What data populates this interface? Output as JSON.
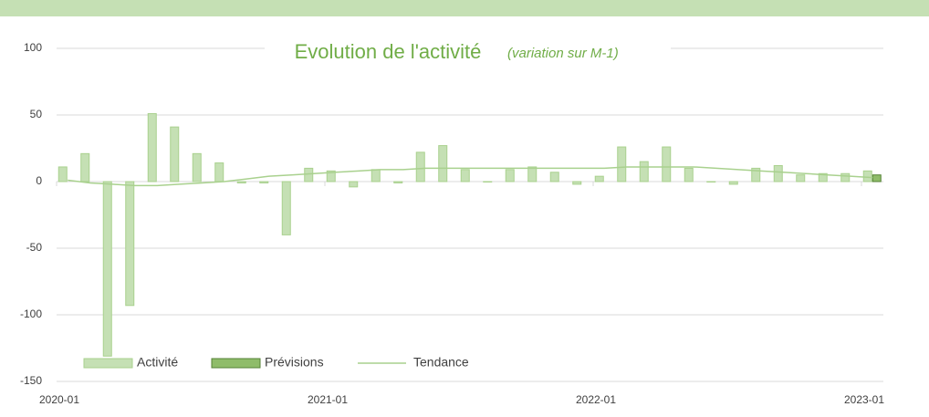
{
  "chart_data": {
    "type": "bar",
    "title": "Evolution de l'activité",
    "subtitle": "(variation sur M-1)",
    "categories": [
      "2020-01",
      null,
      null,
      null,
      null,
      null,
      null,
      null,
      null,
      null,
      null,
      null,
      "2021-01",
      null,
      null,
      null,
      null,
      null,
      null,
      null,
      null,
      null,
      null,
      null,
      "2022-01",
      null,
      null,
      null,
      null,
      null,
      null,
      null,
      null,
      null,
      null,
      null,
      "2023-01"
    ],
    "series": [
      {
        "name": "Activité",
        "type": "bar",
        "color": "#c5e0b4",
        "edge": "#a9d18e",
        "values": [
          11,
          21,
          -131,
          -93,
          51,
          41,
          21,
          14,
          -1,
          -1,
          -40,
          10,
          8,
          -4,
          9,
          -1,
          22,
          27,
          9,
          0,
          9,
          11,
          7,
          -2,
          4,
          26,
          15,
          26,
          10,
          0,
          -2,
          10,
          12,
          5,
          6,
          6,
          8
        ]
      },
      {
        "name": "Prévisions",
        "type": "bar",
        "color": "#8fbc6a",
        "edge": "#548235",
        "values": [
          null,
          null,
          null,
          null,
          null,
          null,
          null,
          null,
          null,
          null,
          null,
          null,
          null,
          null,
          null,
          null,
          null,
          null,
          null,
          null,
          null,
          null,
          null,
          null,
          null,
          null,
          null,
          null,
          null,
          null,
          null,
          null,
          null,
          null,
          null,
          null,
          5
        ]
      },
      {
        "name": "Tendance",
        "type": "line",
        "color": "#a9d18e",
        "values": [
          1,
          -1,
          -2,
          -3,
          -3,
          -2,
          -1,
          0,
          2,
          4,
          5,
          6,
          7,
          8,
          9,
          9,
          10,
          10,
          10,
          10,
          10,
          10,
          10,
          10,
          10,
          11,
          11,
          11,
          11,
          10,
          9,
          8,
          7,
          6,
          5,
          4,
          3
        ]
      }
    ],
    "ylim": [
      -150,
      100
    ],
    "yticks": [
      -150,
      -100,
      -50,
      0,
      50,
      100
    ],
    "grid": true,
    "legend": "bottom-left"
  }
}
